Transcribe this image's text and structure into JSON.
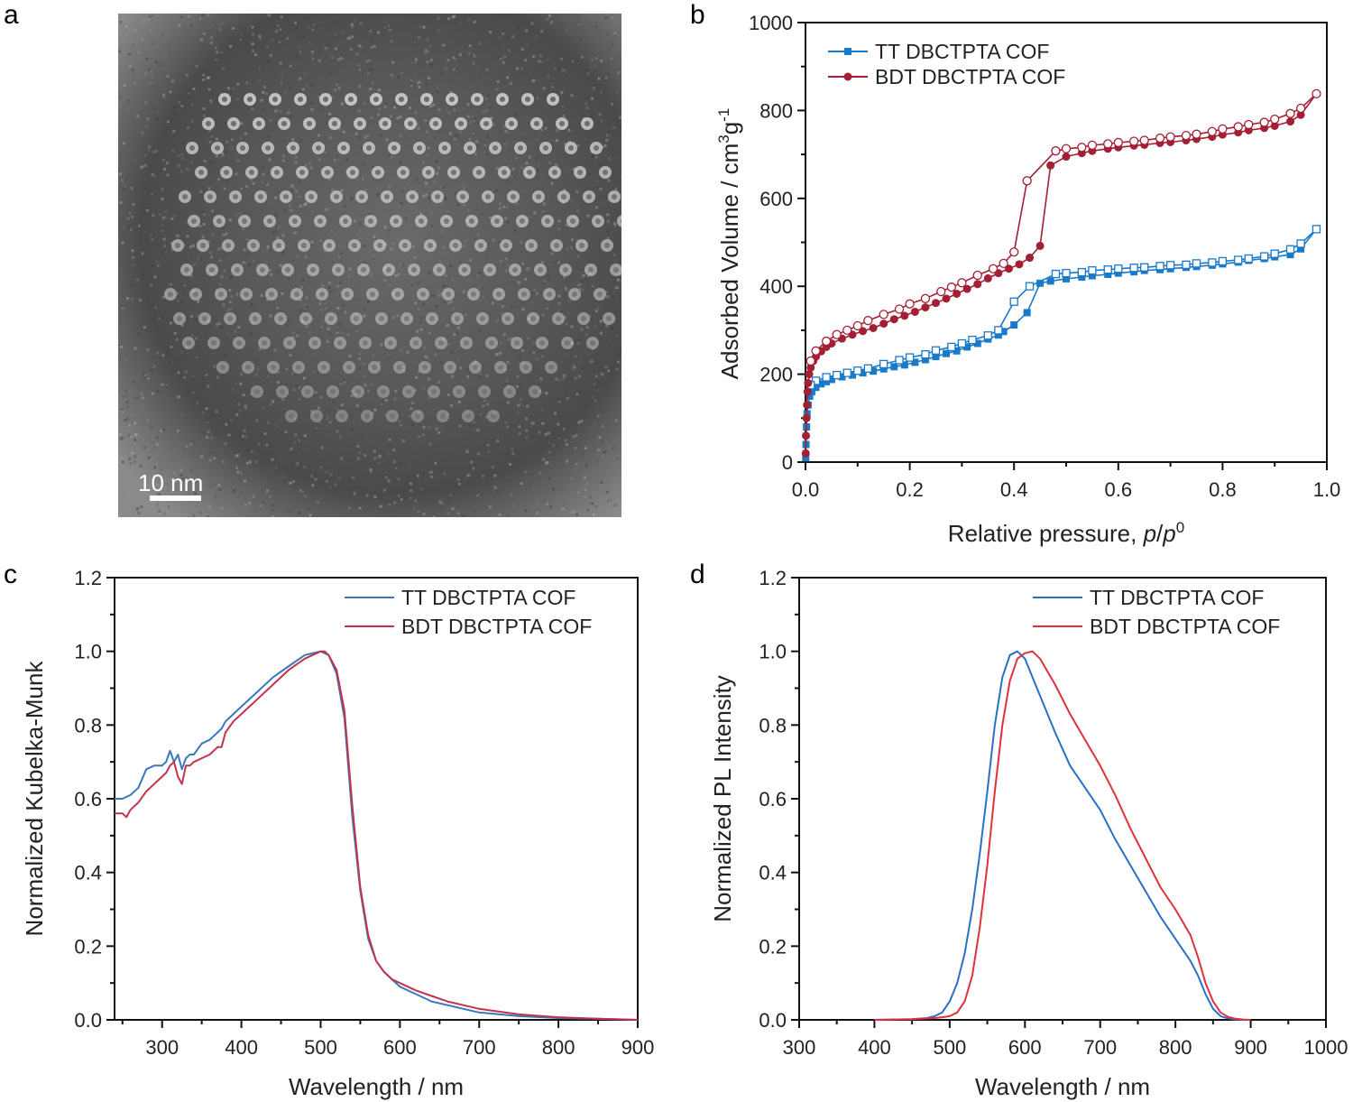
{
  "panels": {
    "a": {
      "label": "a",
      "scale_bar": "10 nm"
    },
    "b": {
      "label": "b"
    },
    "c": {
      "label": "c"
    },
    "d": {
      "label": "d"
    }
  },
  "colors": {
    "tt_b": "#1a7ac7",
    "bdt_b": "#a31f34",
    "tt_c": "#3a78bd",
    "bdt_c": "#c1334a",
    "tt_d": "#2a6fc7",
    "bdt_d": "#e0303a"
  },
  "chart_data": [
    {
      "id": "b",
      "type": "scatter",
      "title": "",
      "xlabel": "Relative pressure, p/p⁰",
      "xlabel_parts": [
        "Relative pressure, ",
        "p",
        "/",
        "p",
        "0"
      ],
      "ylabel": "Adsorbed Volume / cm³g⁻¹",
      "ylabel_parts": [
        "Adsorbed Volume / cm",
        "3",
        "g",
        "-1"
      ],
      "xlim": [
        0,
        1.0
      ],
      "ylim": [
        0,
        1000
      ],
      "xticks": [
        "0.0",
        "0.2",
        "0.4",
        "0.6",
        "0.8",
        "1.0"
      ],
      "xtick_values": [
        0,
        0.2,
        0.4,
        0.6,
        0.8,
        1.0
      ],
      "yticks": [
        "0",
        "200",
        "400",
        "600",
        "800",
        "1000"
      ],
      "ytick_values": [
        0,
        200,
        400,
        600,
        800,
        1000
      ],
      "legend": "top-left",
      "grid": false,
      "series": [
        {
          "name": "TT DBCTPTA COF",
          "marker": "square",
          "adsorption": {
            "x": [
              0.0005,
              0.001,
              0.002,
              0.003,
              0.005,
              0.008,
              0.012,
              0.02,
              0.03,
              0.04,
              0.05,
              0.07,
              0.09,
              0.11,
              0.13,
              0.15,
              0.17,
              0.19,
              0.21,
              0.23,
              0.25,
              0.27,
              0.29,
              0.31,
              0.33,
              0.35,
              0.37,
              0.38,
              0.4,
              0.425,
              0.45,
              0.47,
              0.5,
              0.53,
              0.55,
              0.58,
              0.6,
              0.63,
              0.65,
              0.68,
              0.7,
              0.73,
              0.75,
              0.78,
              0.8,
              0.83,
              0.85,
              0.88,
              0.9,
              0.93,
              0.95,
              0.98
            ],
            "y": [
              10,
              40,
              80,
              110,
              130,
              150,
              160,
              170,
              178,
              183,
              188,
              194,
              198,
              203,
              207,
              212,
              217,
              221,
              227,
              233,
              240,
              247,
              253,
              262,
              270,
              280,
              289,
              297,
              312,
              340,
              407,
              412,
              417,
              421,
              424,
              427,
              430,
              433,
              436,
              438,
              440,
              443,
              445,
              448,
              451,
              455,
              459,
              463,
              467,
              472,
              485,
              530
            ]
          },
          "desorption": {
            "x": [
              0.98,
              0.95,
              0.93,
              0.9,
              0.88,
              0.85,
              0.83,
              0.8,
              0.78,
              0.75,
              0.73,
              0.7,
              0.68,
              0.65,
              0.63,
              0.6,
              0.58,
              0.55,
              0.53,
              0.5,
              0.48,
              0.43,
              0.4,
              0.37,
              0.35,
              0.32,
              0.3,
              0.28,
              0.25,
              0.23,
              0.2,
              0.18,
              0.15,
              0.12,
              0.1,
              0.08,
              0.06,
              0.04,
              0.02,
              0.01
            ],
            "y": [
              530,
              497,
              484,
              474,
              468,
              463,
              460,
              457,
              454,
              452,
              449,
              448,
              446,
              443,
              442,
              440,
              438,
              436,
              432,
              430,
              428,
              400,
              365,
              300,
              288,
              278,
              270,
              262,
              254,
              245,
              238,
              232,
              223,
              213,
              208,
              203,
              198,
              193,
              185,
              175
            ]
          }
        },
        {
          "name": "BDT DBCTPTA COF",
          "marker": "circle",
          "adsorption": {
            "x": [
              0.0005,
              0.001,
              0.002,
              0.003,
              0.004,
              0.005,
              0.007,
              0.01,
              0.015,
              0.02,
              0.03,
              0.04,
              0.05,
              0.07,
              0.09,
              0.11,
              0.13,
              0.15,
              0.17,
              0.19,
              0.21,
              0.23,
              0.25,
              0.27,
              0.29,
              0.31,
              0.33,
              0.35,
              0.37,
              0.39,
              0.41,
              0.43,
              0.45,
              0.47,
              0.5,
              0.53,
              0.55,
              0.58,
              0.6,
              0.63,
              0.65,
              0.68,
              0.7,
              0.73,
              0.75,
              0.78,
              0.8,
              0.83,
              0.85,
              0.88,
              0.9,
              0.93,
              0.95,
              0.98
            ],
            "y": [
              20,
              60,
              100,
              130,
              160,
              180,
              200,
              215,
              230,
              240,
              252,
              262,
              270,
              281,
              290,
              298,
              305,
              315,
              325,
              333,
              342,
              352,
              362,
              372,
              383,
              394,
              405,
              418,
              430,
              440,
              450,
              465,
              492,
              675,
              695,
              703,
              708,
              713,
              716,
              720,
              722,
              726,
              728,
              732,
              735,
              740,
              745,
              750,
              755,
              760,
              765,
              775,
              790,
              838
            ]
          },
          "desorption": {
            "x": [
              0.98,
              0.95,
              0.93,
              0.9,
              0.88,
              0.85,
              0.83,
              0.8,
              0.78,
              0.75,
              0.73,
              0.7,
              0.68,
              0.65,
              0.63,
              0.6,
              0.58,
              0.55,
              0.53,
              0.5,
              0.48,
              0.425,
              0.4,
              0.38,
              0.36,
              0.33,
              0.3,
              0.28,
              0.26,
              0.23,
              0.2,
              0.18,
              0.15,
              0.12,
              0.1,
              0.08,
              0.06,
              0.04,
              0.02,
              0.01
            ],
            "y": [
              838,
              805,
              793,
              780,
              773,
              768,
              763,
              758,
              752,
              746,
              743,
              740,
              737,
              732,
              730,
              727,
              724,
              721,
              716,
              713,
              708,
              640,
              478,
              452,
              440,
              425,
              408,
              398,
              388,
              372,
              360,
              348,
              336,
              322,
              310,
              300,
              290,
              275,
              253,
              230
            ]
          }
        }
      ]
    },
    {
      "id": "c",
      "type": "line",
      "title": "",
      "xlabel": "Wavelength / nm",
      "ylabel": "Normalized Kubelka-Munk",
      "xlim": [
        240,
        900
      ],
      "ylim": [
        0,
        1.2
      ],
      "xticks": [
        "300",
        "400",
        "500",
        "600",
        "700",
        "800",
        "900"
      ],
      "xtick_values": [
        300,
        400,
        500,
        600,
        700,
        800,
        900
      ],
      "yticks": [
        "0.0",
        "0.2",
        "0.4",
        "0.6",
        "0.8",
        "1.0",
        "1.2"
      ],
      "ytick_values": [
        0,
        0.2,
        0.4,
        0.6,
        0.8,
        1.0,
        1.2
      ],
      "legend": "top-right",
      "grid": false,
      "series": [
        {
          "name": "TT DBCTPTA COF",
          "x": [
            240,
            250,
            260,
            270,
            280,
            290,
            300,
            305,
            310,
            315,
            320,
            325,
            330,
            335,
            340,
            350,
            360,
            370,
            375,
            380,
            390,
            400,
            420,
            440,
            460,
            480,
            500,
            510,
            520,
            530,
            540,
            550,
            560,
            570,
            580,
            590,
            600,
            620,
            640,
            660,
            680,
            700,
            750,
            800,
            850,
            900
          ],
          "y": [
            0.6,
            0.6,
            0.61,
            0.63,
            0.68,
            0.69,
            0.69,
            0.7,
            0.73,
            0.7,
            0.72,
            0.68,
            0.71,
            0.72,
            0.72,
            0.75,
            0.76,
            0.78,
            0.79,
            0.81,
            0.83,
            0.85,
            0.89,
            0.93,
            0.96,
            0.99,
            1.0,
            0.99,
            0.94,
            0.82,
            0.55,
            0.35,
            0.22,
            0.16,
            0.13,
            0.11,
            0.09,
            0.07,
            0.05,
            0.04,
            0.03,
            0.02,
            0.01,
            0.005,
            0.003,
            0.0
          ]
        },
        {
          "name": "BDT DBCTPTA COF",
          "x": [
            240,
            250,
            255,
            260,
            270,
            280,
            290,
            300,
            305,
            310,
            315,
            320,
            325,
            330,
            335,
            340,
            350,
            360,
            370,
            375,
            380,
            390,
            400,
            420,
            440,
            460,
            480,
            500,
            505,
            510,
            520,
            530,
            540,
            550,
            560,
            570,
            580,
            590,
            600,
            620,
            640,
            660,
            680,
            700,
            750,
            800,
            850,
            900
          ],
          "y": [
            0.56,
            0.56,
            0.55,
            0.57,
            0.59,
            0.62,
            0.64,
            0.66,
            0.67,
            0.69,
            0.7,
            0.66,
            0.64,
            0.69,
            0.69,
            0.7,
            0.71,
            0.72,
            0.74,
            0.74,
            0.78,
            0.81,
            0.83,
            0.87,
            0.91,
            0.95,
            0.98,
            1.0,
            1.0,
            0.99,
            0.95,
            0.84,
            0.58,
            0.36,
            0.23,
            0.16,
            0.13,
            0.11,
            0.1,
            0.08,
            0.065,
            0.05,
            0.04,
            0.03,
            0.015,
            0.007,
            0.003,
            0.0
          ]
        }
      ]
    },
    {
      "id": "d",
      "type": "line",
      "title": "",
      "xlabel": "Wavelength / nm",
      "ylabel": "Normalized PL Intensity",
      "xlim": [
        300,
        1000
      ],
      "ylim": [
        0,
        1.2
      ],
      "xticks": [
        "300",
        "400",
        "500",
        "600",
        "700",
        "800",
        "900",
        "1000"
      ],
      "xtick_values": [
        300,
        400,
        500,
        600,
        700,
        800,
        900,
        1000
      ],
      "yticks": [
        "0.0",
        "0.2",
        "0.4",
        "0.6",
        "0.8",
        "1.0",
        "1.2"
      ],
      "ytick_values": [
        0,
        0.2,
        0.4,
        0.6,
        0.8,
        1.0,
        1.2
      ],
      "legend": "top-right",
      "grid": false,
      "series": [
        {
          "name": "TT DBCTPTA COF",
          "x": [
            400,
            450,
            470,
            480,
            490,
            500,
            510,
            520,
            530,
            540,
            550,
            560,
            570,
            580,
            590,
            600,
            610,
            620,
            640,
            660,
            680,
            700,
            720,
            740,
            760,
            780,
            800,
            820,
            830,
            840,
            850,
            860,
            870,
            880,
            890,
            900
          ],
          "y": [
            0.0,
            0.002,
            0.005,
            0.01,
            0.02,
            0.05,
            0.1,
            0.18,
            0.3,
            0.45,
            0.62,
            0.8,
            0.93,
            0.99,
            1.0,
            0.98,
            0.93,
            0.88,
            0.78,
            0.69,
            0.63,
            0.57,
            0.49,
            0.42,
            0.35,
            0.28,
            0.22,
            0.16,
            0.12,
            0.07,
            0.03,
            0.01,
            0.004,
            0.001,
            0.0,
            0.0
          ]
        },
        {
          "name": "BDT DBCTPTA COF",
          "x": [
            400,
            450,
            480,
            490,
            500,
            510,
            520,
            530,
            540,
            550,
            560,
            570,
            580,
            590,
            600,
            610,
            620,
            640,
            660,
            680,
            700,
            720,
            740,
            760,
            780,
            800,
            820,
            830,
            840,
            850,
            860,
            870,
            880,
            890,
            900
          ],
          "y": [
            0.0,
            0.002,
            0.005,
            0.007,
            0.01,
            0.02,
            0.05,
            0.12,
            0.25,
            0.42,
            0.62,
            0.8,
            0.92,
            0.98,
            0.995,
            1.0,
            0.98,
            0.91,
            0.83,
            0.76,
            0.69,
            0.61,
            0.52,
            0.44,
            0.36,
            0.3,
            0.23,
            0.17,
            0.1,
            0.05,
            0.02,
            0.008,
            0.003,
            0.001,
            0.0
          ]
        }
      ]
    }
  ]
}
